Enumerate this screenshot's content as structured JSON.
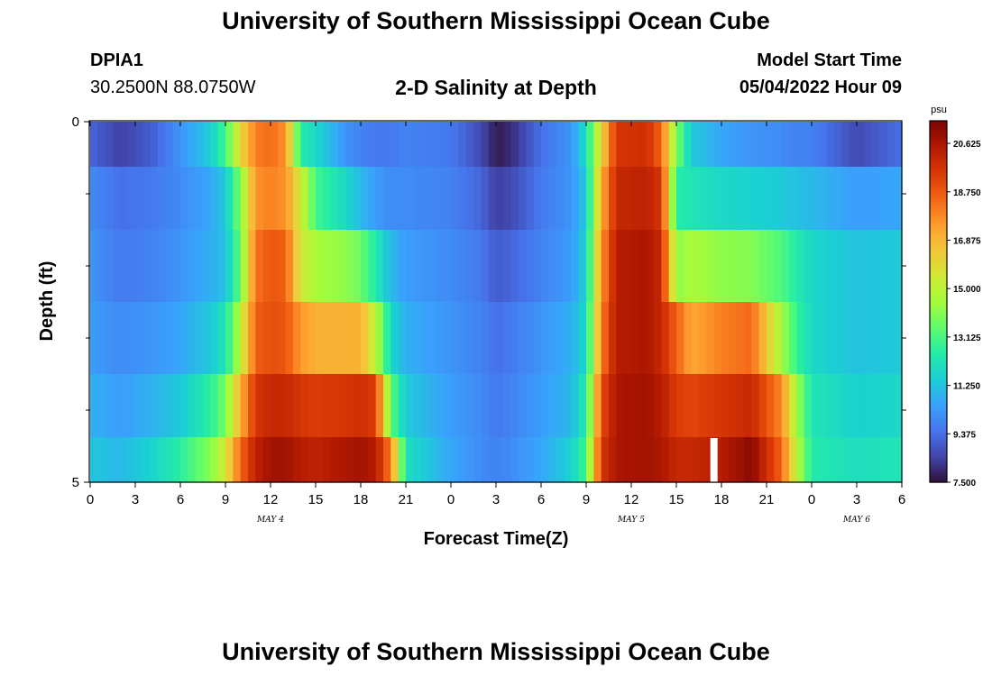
{
  "header": {
    "main_title": "University of Southern Mississippi Ocean Cube",
    "station_id": "DPIA1",
    "station_coords": "30.2500N  88.0750W",
    "plot_title": "2-D Salinity at Depth",
    "model_start_label": "Model Start Time",
    "model_start_value": "05/04/2022 Hour 09",
    "footer_title": "University of Southern Mississippi Ocean Cube"
  },
  "chart_data": {
    "type": "heatmap",
    "title": "2-D Salinity at Depth",
    "xlabel": "Forecast Time(Z)",
    "ylabel": "Depth (ft)",
    "colorbar_unit": "psu",
    "x_ticks": [
      "0",
      "3",
      "6",
      "9",
      "12",
      "15",
      "18",
      "21",
      "0",
      "3",
      "6",
      "9",
      "12",
      "15",
      "18",
      "21",
      "0",
      "3",
      "6"
    ],
    "x_day_labels": [
      {
        "label": "MAY 4",
        "at_hour": 12
      },
      {
        "label": "MAY 5",
        "at_hour": 36
      },
      {
        "label": "MAY 6",
        "at_hour": 51
      }
    ],
    "x_range_hours": [
      0,
      54
    ],
    "y_ticks": [
      "0",
      "5"
    ],
    "y_range_ft": [
      0,
      5
    ],
    "depth_levels_ft": [
      0.25,
      1,
      2,
      3,
      4,
      4.75
    ],
    "colorbar_ticks": [
      "20.625",
      "18.750",
      "16.875",
      "15.000",
      "13.125",
      "11.250",
      "9.375",
      "7.500"
    ],
    "color_range": [
      7.5,
      21.5
    ],
    "colormap": [
      "#30123b",
      "#4145ab",
      "#4675ed",
      "#39a2fc",
      "#1bcfd4",
      "#24eca6",
      "#61fc6c",
      "#a4fc3b",
      "#d1e834",
      "#f3c63a",
      "#fe9b2d",
      "#f36315",
      "#d93806",
      "#b11901",
      "#7a0403"
    ],
    "missing_value_color": "#ffffff",
    "salinity_profiles_psu": [
      {
        "hour": 0,
        "values": [
          9.2,
          10.0,
          10.2,
          10.4,
          10.8,
          11.3
        ]
      },
      {
        "hour": 2,
        "values": [
          8.4,
          9.4,
          9.6,
          10.0,
          10.4,
          11.0
        ]
      },
      {
        "hour": 4,
        "values": [
          9.0,
          9.6,
          9.8,
          10.2,
          10.8,
          11.6
        ]
      },
      {
        "hour": 6,
        "values": [
          10.2,
          10.0,
          10.2,
          10.6,
          11.4,
          12.6
        ]
      },
      {
        "hour": 8,
        "values": [
          11.5,
          10.6,
          10.8,
          11.4,
          12.6,
          14.0
        ]
      },
      {
        "hour": 9,
        "values": [
          13.0,
          11.4,
          11.2,
          12.2,
          13.8,
          15.5
        ]
      },
      {
        "hour": 10,
        "values": [
          16.0,
          14.0,
          13.6,
          15.0,
          17.0,
          18.5
        ]
      },
      {
        "hour": 11,
        "values": [
          18.0,
          17.6,
          18.2,
          18.6,
          19.6,
          20.2
        ]
      },
      {
        "hour": 12,
        "values": [
          18.4,
          18.0,
          18.8,
          19.0,
          20.0,
          20.8
        ]
      },
      {
        "hour": 13,
        "values": [
          17.6,
          17.6,
          18.6,
          18.8,
          20.0,
          20.8
        ]
      },
      {
        "hour": 14,
        "values": [
          12.5,
          15.5,
          15.5,
          17.5,
          19.6,
          20.4
        ]
      },
      {
        "hour": 15,
        "values": [
          11.8,
          13.0,
          14.6,
          17.0,
          19.4,
          20.2
        ]
      },
      {
        "hour": 17,
        "values": [
          10.2,
          11.8,
          14.2,
          17.0,
          19.6,
          20.6
        ]
      },
      {
        "hour": 18,
        "values": [
          9.8,
          11.0,
          13.6,
          17.0,
          19.8,
          20.8
        ]
      },
      {
        "hour": 19,
        "values": [
          9.6,
          10.4,
          12.4,
          15.0,
          19.4,
          20.4
        ]
      },
      {
        "hour": 20,
        "values": [
          9.6,
          10.0,
          11.0,
          11.8,
          13.5,
          18.0
        ]
      },
      {
        "hour": 21,
        "values": [
          9.8,
          10.0,
          10.4,
          10.8,
          11.4,
          12.0
        ]
      },
      {
        "hour": 24,
        "values": [
          9.6,
          9.8,
          10.0,
          10.2,
          10.4,
          10.6
        ]
      },
      {
        "hour": 26,
        "values": [
          8.6,
          9.2,
          9.6,
          9.8,
          10.0,
          10.0
        ]
      },
      {
        "hour": 27,
        "values": [
          7.7,
          8.4,
          9.0,
          9.4,
          9.6,
          9.8
        ]
      },
      {
        "hour": 28,
        "values": [
          8.0,
          8.6,
          9.2,
          9.6,
          9.8,
          10.0
        ]
      },
      {
        "hour": 30,
        "values": [
          9.4,
          9.6,
          9.8,
          10.2,
          10.4,
          10.6
        ]
      },
      {
        "hour": 32,
        "values": [
          10.2,
          10.2,
          10.4,
          10.8,
          11.0,
          11.6
        ]
      },
      {
        "hour": 33,
        "values": [
          12.0,
          11.4,
          11.6,
          11.8,
          12.4,
          13.0
        ]
      },
      {
        "hour": 34,
        "values": [
          16.0,
          17.0,
          17.5,
          18.0,
          19.0,
          19.6
        ]
      },
      {
        "hour": 35,
        "values": [
          19.6,
          20.0,
          20.4,
          20.4,
          20.6,
          20.6
        ]
      },
      {
        "hour": 37,
        "values": [
          19.8,
          20.2,
          20.6,
          20.6,
          20.8,
          20.8
        ]
      },
      {
        "hour": 38,
        "values": [
          18.5,
          19.6,
          20.0,
          20.0,
          20.4,
          20.6
        ]
      },
      {
        "hour": 39,
        "values": [
          14.0,
          12.5,
          14.2,
          18.6,
          19.4,
          20.0
        ]
      },
      {
        "hour": 40,
        "values": [
          11.4,
          12.2,
          14.6,
          17.2,
          19.2,
          20.0
        ]
      },
      {
        "hour": 42,
        "values": [
          10.6,
          11.8,
          14.2,
          18.0,
          19.6,
          20.4
        ]
      },
      {
        "hour": 44,
        "values": [
          10.2,
          11.6,
          14.0,
          18.4,
          20.0,
          21.2
        ]
      },
      {
        "hour": 46,
        "values": [
          10.0,
          11.4,
          13.2,
          14.5,
          17.8,
          18.5
        ]
      },
      {
        "hour": 47,
        "values": [
          9.8,
          11.2,
          12.4,
          12.8,
          14.5,
          15.0
        ]
      },
      {
        "hour": 48,
        "values": [
          9.8,
          11.0,
          11.8,
          11.8,
          12.2,
          12.4
        ]
      },
      {
        "hour": 51,
        "values": [
          8.6,
          10.4,
          11.2,
          11.2,
          11.6,
          12.0
        ]
      },
      {
        "hour": 54,
        "values": [
          9.4,
          10.6,
          11.4,
          11.4,
          11.8,
          12.2
        ]
      }
    ],
    "missing_data": [
      {
        "hour": 41.5,
        "depth_ft": 4.75
      }
    ]
  }
}
